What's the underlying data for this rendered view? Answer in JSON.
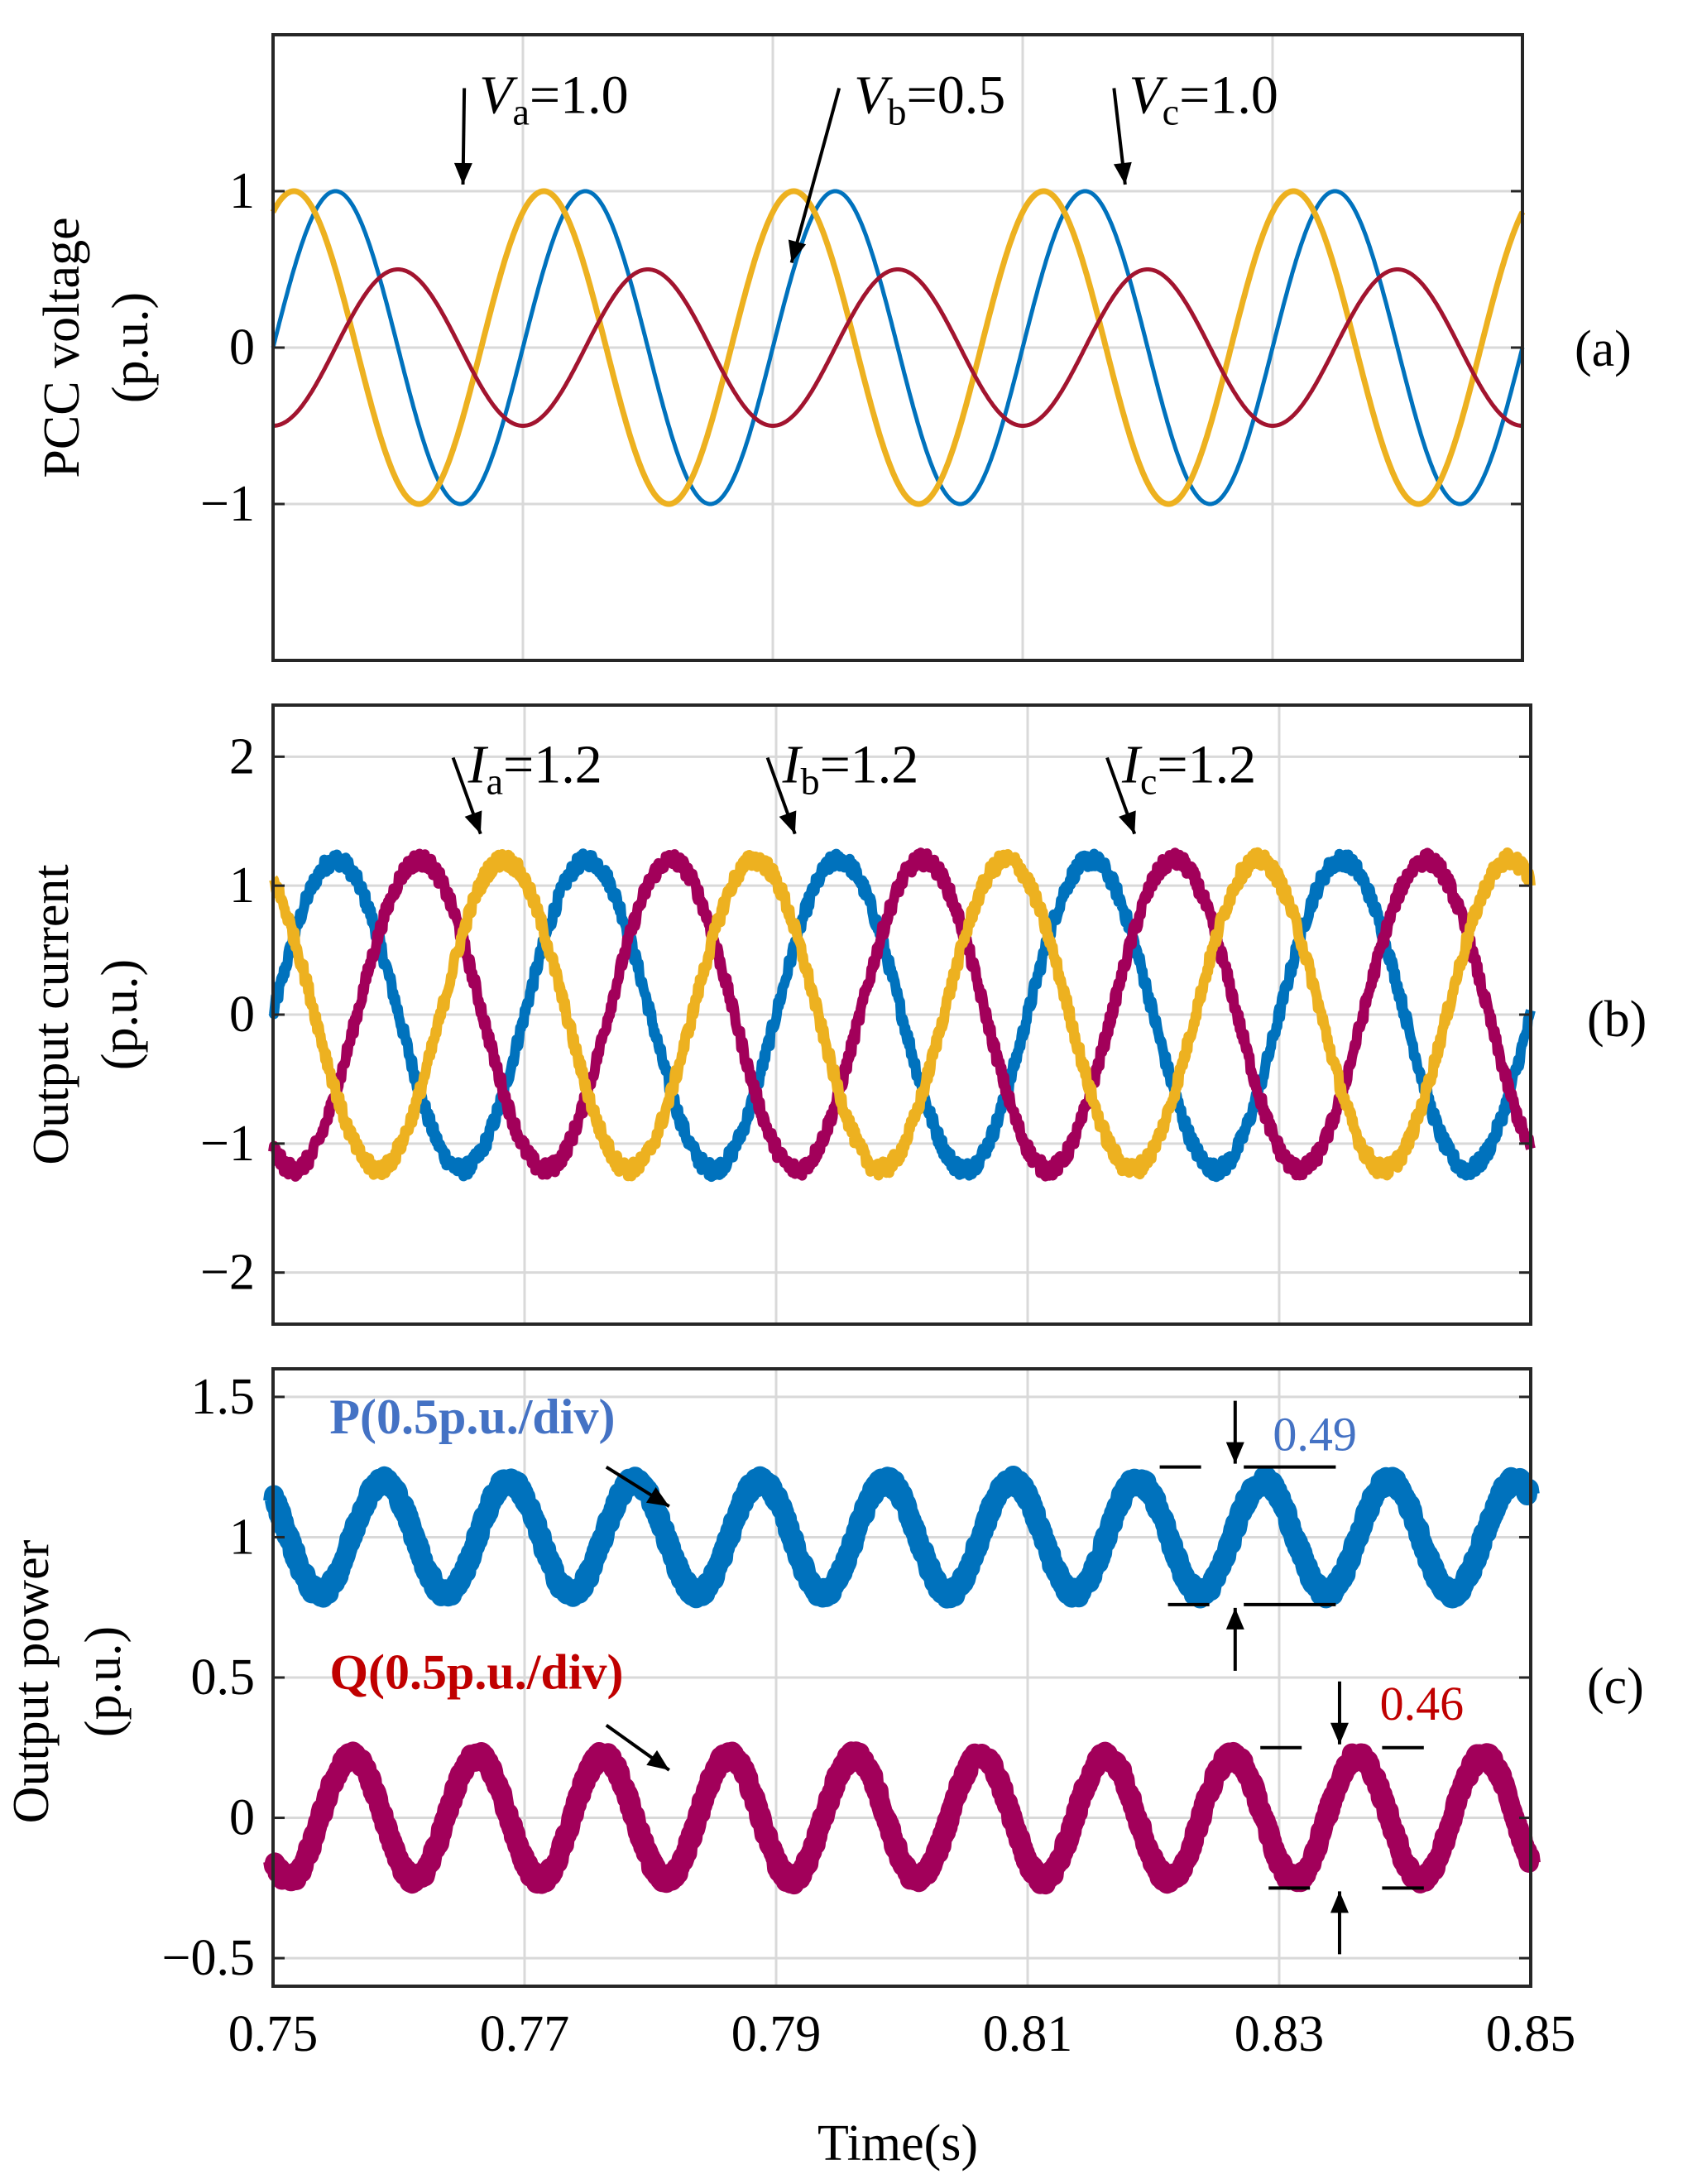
{
  "colors": {
    "blue": "#0072BD",
    "gold": "#EDB120",
    "red": "#A2142F",
    "magenta": "#A2005A",
    "p_label": "#4472C4",
    "q_label": "#C00000",
    "grid": "#d9d9d9"
  },
  "chart_data": [
    {
      "id": "a",
      "type": "line",
      "panel_label": "(a)",
      "ylabel_line1": "PCC voltage",
      "ylabel_line2": "(p.u.)",
      "xlim": [
        0.75,
        0.85
      ],
      "ylim": [
        -2,
        2
      ],
      "yticks": [
        -1,
        0,
        1
      ],
      "ytick_labels": [
        "−1",
        "0",
        "1"
      ],
      "xgrid": [
        0.75,
        0.77,
        0.79,
        0.81,
        0.83,
        0.85
      ],
      "series": [
        {
          "name": "Va",
          "color": "#0072BD",
          "amplitude": 1.0,
          "freq_hz": 50,
          "phase_deg": 180,
          "offset": 0,
          "width": 5,
          "noise": 0
        },
        {
          "name": "Vc",
          "color": "#EDB120",
          "amplitude": 1.0,
          "freq_hz": 50,
          "phase_deg": -120,
          "offset": 0,
          "width": 7,
          "noise": 0
        },
        {
          "name": "Vb",
          "color": "#A2142F",
          "amplitude": 0.5,
          "freq_hz": 50,
          "phase_deg": 90,
          "offset": 0,
          "width": 5,
          "noise": 0
        }
      ],
      "annotations": [
        {
          "var": "V",
          "sub": "a",
          "value": "=1.0",
          "x": 0.7665,
          "y": 1.5,
          "target_x": 0.7652,
          "target_y": 1.0
        },
        {
          "var": "V",
          "sub": "b",
          "value": "=0.5",
          "x": 0.7965,
          "y": 1.5,
          "target_x": 0.7915,
          "target_y": 0.5
        },
        {
          "var": "V",
          "sub": "c",
          "value": "=1.0",
          "x": 0.8185,
          "y": 1.5,
          "target_x": 0.8182,
          "target_y": 1.0
        }
      ]
    },
    {
      "id": "b",
      "type": "line",
      "panel_label": "(b)",
      "ylabel_line1": "Output current",
      "ylabel_line2": "(p.u.)",
      "xlim": [
        0.75,
        0.85
      ],
      "ylim": [
        -2.4,
        2.4
      ],
      "yticks": [
        -2,
        -1,
        0,
        1,
        2
      ],
      "ytick_labels": [
        "−2",
        "−1",
        "0",
        "1",
        "2"
      ],
      "xgrid": [
        0.75,
        0.77,
        0.79,
        0.81,
        0.83,
        0.85
      ],
      "series": [
        {
          "name": "Ia",
          "color": "#0072BD",
          "amplitude": 1.2,
          "freq_hz": 50,
          "phase_deg": 180,
          "offset": 0,
          "width": 12,
          "noise": 0.06
        },
        {
          "name": "Ib",
          "color": "#A2005A",
          "amplitude": 1.2,
          "freq_hz": 50,
          "phase_deg": 60,
          "offset": 0,
          "width": 12,
          "noise": 0.06
        },
        {
          "name": "Ic",
          "color": "#EDB120",
          "amplitude": 1.2,
          "freq_hz": 50,
          "phase_deg": -60,
          "offset": 0,
          "width": 12,
          "noise": 0.06
        }
      ],
      "annotations": [
        {
          "var": "I",
          "sub": "a",
          "value": "=1.2",
          "x": 0.7655,
          "y": 1.8,
          "target_x": 0.7665,
          "target_y": 1.35
        },
        {
          "var": "I",
          "sub": "b",
          "value": "=1.2",
          "x": 0.7905,
          "y": 1.8,
          "target_x": 0.7915,
          "target_y": 1.35
        },
        {
          "var": "I",
          "sub": "c",
          "value": "=1.2",
          "x": 0.8175,
          "y": 1.8,
          "target_x": 0.8185,
          "target_y": 1.35
        }
      ]
    },
    {
      "id": "c",
      "type": "line",
      "panel_label": "(c)",
      "ylabel_line1": "Output power",
      "ylabel_line2": "(p.u.)",
      "xlim": [
        0.75,
        0.85
      ],
      "ylim": [
        -0.6,
        1.6
      ],
      "yticks": [
        -0.5,
        0,
        0.5,
        1,
        1.5
      ],
      "ytick_labels": [
        "−0.5",
        "0",
        "0.5",
        "1",
        "1.5"
      ],
      "xticks": [
        0.75,
        0.77,
        0.79,
        0.81,
        0.83,
        0.85
      ],
      "xtick_labels": [
        "0.75",
        "0.77",
        "0.79",
        "0.81",
        "0.83",
        "0.85"
      ],
      "xlabel": "Time(s)",
      "series": [
        {
          "name": "P",
          "color": "#0072BD",
          "amplitude": 0.2,
          "freq_hz": 100,
          "phase_deg": 135,
          "offset": 1.0,
          "width": 24,
          "noise": 0.02
        },
        {
          "name": "Q",
          "color": "#A2005A",
          "amplitude": 0.22,
          "freq_hz": 100,
          "phase_deg": 225,
          "offset": 0.0,
          "width": 24,
          "noise": 0.02
        }
      ],
      "pq_labels": [
        {
          "text": "P(0.5p.u./div)",
          "color": "#4472C4",
          "x": 0.7545,
          "y": 1.37,
          "arrow_from_x": 0.7765,
          "arrow_from_y": 1.25,
          "arrow_to_x": 0.7815,
          "arrow_to_y": 1.11
        },
        {
          "text": "Q(0.5p.u./div)",
          "color": "#C00000",
          "x": 0.7545,
          "y": 0.46,
          "arrow_from_x": 0.7765,
          "arrow_from_y": 0.33,
          "arrow_to_x": 0.7815,
          "arrow_to_y": 0.17
        }
      ],
      "measurements": [
        {
          "text": "0.49",
          "color": "#4472C4",
          "x_left": 0.8205,
          "x_right": 0.8285,
          "x_dash_right": 0.8345,
          "x_arrow": 0.8265,
          "y_top": 1.25,
          "y_bottom": 0.76,
          "label_x": 0.8295,
          "label_y": 1.31
        },
        {
          "text": "0.46",
          "color": "#C00000",
          "x_left": 0.8285,
          "x_right": 0.8395,
          "x_dash_right": 0.8415,
          "x_arrow": 0.8348,
          "y_top": 0.25,
          "y_bottom": -0.25,
          "label_x": 0.838,
          "label_y": 0.35
        }
      ]
    }
  ]
}
